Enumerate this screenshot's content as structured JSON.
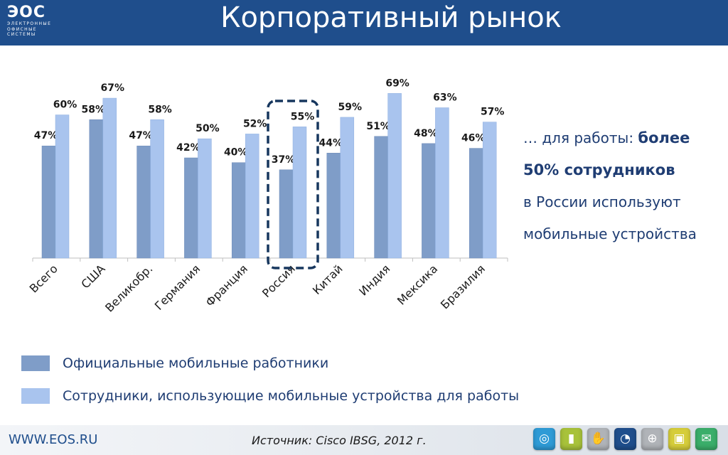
{
  "header": {
    "title": "Корпоративный рынок",
    "logo": {
      "main": "ЭОС",
      "sub": "ЭЛЕКТРОННЫЕ\nОФИСНЫЕ\nСИСТЕМЫ"
    }
  },
  "chart_data": {
    "type": "bar",
    "categories": [
      "Всего",
      "США",
      "Великобр.",
      "Германия",
      "Франция",
      "Россия",
      "Китай",
      "Индия",
      "Мексика",
      "Бразилия"
    ],
    "series": [
      {
        "name": "Официальные мобильные работники",
        "values": [
          47,
          58,
          47,
          42,
          40,
          37,
          44,
          51,
          48,
          46
        ],
        "color": "#7f9dc8"
      },
      {
        "name": "Сотрудники, использующие мобильные устройства для работы",
        "values": [
          60,
          67,
          58,
          50,
          52,
          55,
          59,
          69,
          63,
          57
        ],
        "color": "#a9c4ee"
      }
    ],
    "value_suffix": "%",
    "ylim": [
      0,
      70
    ],
    "highlight_category": "Россия",
    "highlight_color": "#17375e",
    "grid": false
  },
  "side_text": {
    "line1_prefix": "… для работы: ",
    "line1_bold": "более",
    "line2_bold": "50% сотрудников",
    "line3": "в России используют",
    "line4": "мобильные устройства"
  },
  "legend": [
    {
      "label": "Официальные мобильные работники",
      "color": "#7f9dc8"
    },
    {
      "label": "Сотрудники, использующие мобильные устройства для работы",
      "color": "#a9c4ee"
    }
  ],
  "footer": {
    "site": "WWW.EOS.RU",
    "source": "Источник: Cisco IBSG, 2012 г.",
    "nav_icons": [
      {
        "name": "globe-icon",
        "glyph": "◎",
        "color": "#2e9bd6"
      },
      {
        "name": "bar-chart-icon",
        "glyph": "▮",
        "color": "#a8c23a"
      },
      {
        "name": "handshake-icon",
        "glyph": "✋",
        "color": "#b0b3b8"
      },
      {
        "name": "pie-chart-icon",
        "glyph": "◔",
        "color": "#1f4e8c"
      },
      {
        "name": "world-icon",
        "glyph": "⊕",
        "color": "#b0b3b8"
      },
      {
        "name": "document-icon",
        "glyph": "▣",
        "color": "#d6cd3a"
      },
      {
        "name": "mail-icon",
        "glyph": "✉",
        "color": "#3aae6a"
      }
    ]
  }
}
